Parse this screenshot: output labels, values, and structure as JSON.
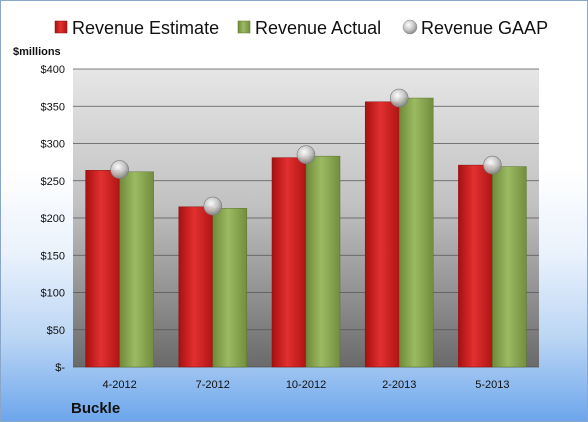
{
  "legend": {
    "estimate_label": "Revenue Estimate",
    "actual_label": "Revenue Actual",
    "gaap_label": "Revenue GAAP"
  },
  "unit_label": "$millions",
  "company": "Buckle",
  "colors": {
    "estimate": "#d42020",
    "actual": "#8caa52",
    "gaap": "#c8c8c8"
  },
  "chart_data": {
    "type": "bar",
    "categories": [
      "4-2012",
      "7-2012",
      "10-2012",
      "2-2013",
      "5-2013"
    ],
    "series": [
      {
        "name": "Revenue Estimate",
        "values": [
          264,
          215,
          281,
          356,
          271
        ]
      },
      {
        "name": "Revenue Actual",
        "values": [
          262,
          213,
          283,
          361,
          269
        ]
      },
      {
        "name": "Revenue GAAP",
        "values": [
          265,
          216,
          285,
          361,
          271
        ]
      }
    ],
    "ylim": [
      0,
      400
    ],
    "yticks": [
      0,
      50,
      100,
      150,
      200,
      250,
      300,
      350,
      400
    ],
    "ytick_labels": [
      "$-",
      "$50",
      "$100",
      "$150",
      "$200",
      "$250",
      "$300",
      "$350",
      "$400"
    ],
    "ylabel": "$millions",
    "xlabel": "",
    "grid": true,
    "legend_position": "top"
  }
}
